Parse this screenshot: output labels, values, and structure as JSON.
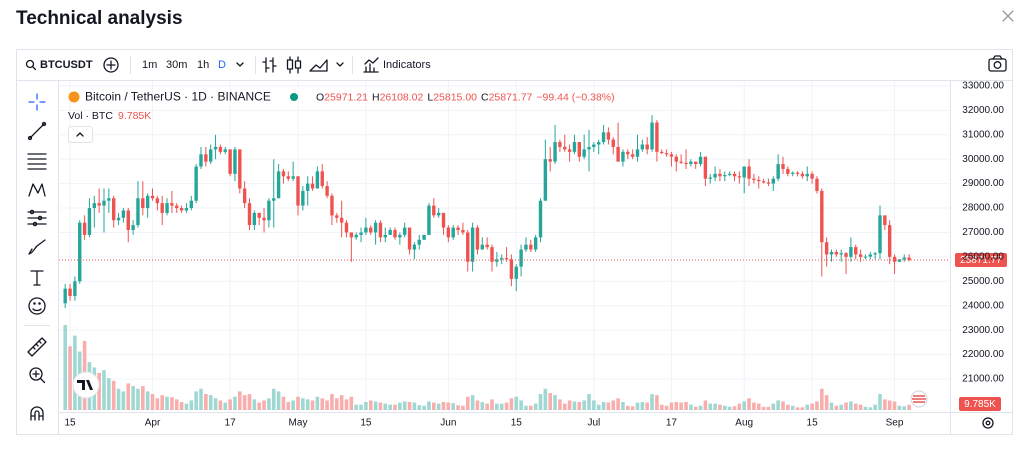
{
  "header": {
    "title": "Technical analysis"
  },
  "toolbar": {
    "symbol": "BTCUSDT",
    "intervals": [
      "1m",
      "30m",
      "1h",
      "D"
    ],
    "indicators": "Indicators"
  },
  "chart_data": {
    "type": "candlestick",
    "legend": {
      "symbol": "Bitcoin / TetherUS · 1D · BINANCE",
      "ohlc": [
        {
          "label": "O",
          "value": "25971.21"
        },
        {
          "label": "H",
          "value": "26108.02"
        },
        {
          "label": "L",
          "value": "25815.00"
        },
        {
          "label": "C",
          "value": "25871.77"
        }
      ],
      "change": "−99.44 (−0.38%)",
      "volume_title": "Vol · BTC",
      "volume_value": "9.785K"
    },
    "last_price_label": "25871.77",
    "categories": [
      null,
      "15",
      null,
      null,
      null,
      null,
      null,
      null,
      null,
      null,
      null,
      null,
      null,
      null,
      null,
      null,
      null,
      null,
      "Apr",
      null,
      null,
      null,
      null,
      null,
      null,
      null,
      null,
      null,
      null,
      null,
      null,
      null,
      null,
      null,
      "17",
      null,
      null,
      null,
      null,
      null,
      null,
      null,
      null,
      null,
      null,
      null,
      null,
      null,
      "May",
      null,
      null,
      null,
      null,
      null,
      null,
      null,
      null,
      null,
      null,
      null,
      null,
      null,
      "15",
      null,
      null,
      null,
      null,
      null,
      null,
      null,
      null,
      null,
      null,
      null,
      null,
      null,
      null,
      null,
      null,
      "Jun",
      null,
      null,
      null,
      null,
      null,
      null,
      null,
      null,
      null,
      null,
      null,
      null,
      null,
      "15",
      null,
      null,
      null,
      null,
      null,
      null,
      null,
      null,
      null,
      null,
      null,
      null,
      null,
      null,
      null,
      "Jul",
      null,
      null,
      null,
      null,
      null,
      null,
      null,
      null,
      null,
      null,
      null,
      null,
      null,
      null,
      null,
      "17",
      null,
      null,
      null,
      null,
      null,
      null,
      null,
      null,
      null,
      null,
      null,
      null,
      null,
      null,
      "Aug",
      null,
      null,
      null,
      null,
      null,
      null,
      null,
      null,
      null,
      null,
      null,
      null,
      null,
      "15",
      null,
      null,
      null,
      null,
      null,
      null,
      null,
      null,
      null,
      null,
      null,
      null,
      null,
      null,
      null,
      null,
      "Sep",
      null,
      null,
      null
    ],
    "series": [
      {
        "name": "BTCUSDT",
        "up_color": "#26a69a",
        "down_color": "#ef5350",
        "open": [
          24100,
          24700,
          24400,
          25000,
          27400,
          26900,
          28000,
          28200,
          28100,
          28300,
          28400,
          27500,
          27600,
          27900,
          27100,
          27300,
          28400,
          28000,
          28500,
          28400,
          28200,
          27800,
          28200,
          28100,
          28000,
          27900,
          28000,
          28300,
          29700,
          30200,
          29900,
          30400,
          30500,
          30300,
          30400,
          29400,
          30400,
          28800,
          28200,
          27300,
          27800,
          27600,
          27500,
          28300,
          28400,
          29500,
          29300,
          29200,
          29300,
          28100,
          28700,
          29000,
          28800,
          29500,
          28900,
          28500,
          27700,
          27600,
          27400,
          27000,
          26800,
          26900,
          27000,
          27200,
          27000,
          27400,
          26800,
          26900,
          27100,
          26800,
          26900,
          27200,
          26300,
          26500,
          26700,
          26900,
          28100,
          27700,
          27800,
          27200,
          26800,
          27200,
          27100,
          27000,
          25800,
          27200,
          26300,
          26500,
          26400,
          25800,
          25900,
          25950,
          25900,
          25100,
          25600,
          26300,
          26500,
          26300,
          26800,
          28300,
          30000,
          29900,
          30700,
          30500,
          30400,
          30300,
          30700,
          30100,
          30400,
          30500,
          30600,
          30700,
          31100,
          30800,
          30500,
          29900,
          30300,
          30200,
          30100,
          30400,
          30600,
          30400,
          31500,
          30300,
          30250,
          30200,
          30100,
          29900,
          29850,
          29800,
          29900,
          29800,
          30100,
          29200,
          29250,
          29400,
          29300,
          29350,
          29400,
          29300,
          29250,
          29700,
          29200,
          29150,
          29100,
          29050,
          29000,
          29200,
          29800,
          29600,
          29400,
          29450,
          29400,
          29300,
          29400,
          29200,
          28700,
          26600,
          26100,
          26200,
          26100,
          26150,
          26000,
          26400,
          26100,
          26000,
          26010,
          26100,
          26150,
          27700,
          27300,
          26000,
          25800,
          25900,
          25971.21
        ],
        "high": [
          24900,
          24900,
          25200,
          27500,
          27700,
          28400,
          28500,
          28800,
          28800,
          28800,
          28500,
          27800,
          28000,
          28000,
          27500,
          29100,
          29100,
          28600,
          28800,
          28500,
          28500,
          28400,
          28700,
          28200,
          28100,
          28200,
          28500,
          29800,
          30500,
          30500,
          30600,
          31000,
          30600,
          30500,
          30400,
          30500,
          30400,
          29100,
          28400,
          27900,
          27800,
          28000,
          28400,
          30000,
          29800,
          29600,
          29500,
          29900,
          29300,
          28900,
          29300,
          29300,
          29700,
          29800,
          29100,
          28600,
          27800,
          28300,
          27500,
          27000,
          27000,
          27200,
          27600,
          27300,
          27500,
          27500,
          27200,
          27200,
          27200,
          27000,
          27400,
          27200,
          26600,
          26900,
          26900,
          28200,
          28400,
          28000,
          27800,
          27300,
          27300,
          27300,
          27400,
          27100,
          27400,
          27300,
          26800,
          26800,
          26500,
          26200,
          26100,
          26400,
          26100,
          25700,
          26500,
          26800,
          26700,
          26900,
          28400,
          30800,
          30500,
          31400,
          30800,
          31000,
          30600,
          31000,
          30700,
          31000,
          31200,
          30700,
          30800,
          31400,
          31300,
          30900,
          31500,
          30400,
          30400,
          30400,
          31000,
          30800,
          30900,
          31800,
          31600,
          30400,
          30400,
          30300,
          30200,
          30200,
          30400,
          30000,
          29900,
          30300,
          30100,
          29400,
          29700,
          29600,
          29500,
          29500,
          29500,
          29500,
          29700,
          30000,
          29400,
          29300,
          29200,
          29200,
          29300,
          30200,
          30100,
          29700,
          29500,
          29500,
          29500,
          29700,
          29500,
          29300,
          28800,
          26800,
          26300,
          26300,
          26300,
          26200,
          26800,
          26500,
          26300,
          26100,
          26200,
          26200,
          28100,
          27700,
          27500,
          26100,
          25900,
          26100,
          26108.02
        ],
        "low": [
          23900,
          24200,
          24200,
          24900,
          26700,
          26800,
          27200,
          27800,
          27000,
          27800,
          27200,
          27300,
          27400,
          26600,
          26900,
          27200,
          27700,
          27600,
          28300,
          27900,
          27300,
          27700,
          27800,
          27800,
          27800,
          27800,
          27900,
          28200,
          29600,
          29700,
          29800,
          30000,
          30200,
          30200,
          29300,
          29100,
          28600,
          28000,
          27100,
          27100,
          27300,
          27000,
          27200,
          27200,
          28400,
          29000,
          29100,
          29100,
          27700,
          27900,
          28100,
          28700,
          28800,
          28800,
          28400,
          27300,
          27400,
          26800,
          26800,
          25800,
          26700,
          26600,
          26900,
          26900,
          26500,
          26600,
          26600,
          26900,
          26700,
          26500,
          26800,
          26100,
          25900,
          26300,
          26700,
          26900,
          27600,
          27600,
          26900,
          26600,
          26700,
          26900,
          26900,
          25400,
          25400,
          26100,
          26300,
          26300,
          25400,
          25600,
          25700,
          25800,
          24800,
          24600,
          25200,
          26200,
          26200,
          26200,
          26600,
          28300,
          29500,
          29800,
          30300,
          30300,
          29900,
          30200,
          29900,
          30000,
          29500,
          30300,
          30200,
          30600,
          30600,
          30200,
          29900,
          29700,
          30000,
          30000,
          29900,
          30300,
          30200,
          30300,
          29900,
          30200,
          30100,
          29700,
          29500,
          29800,
          29600,
          29700,
          29600,
          29700,
          28900,
          29000,
          29100,
          29100,
          29100,
          29300,
          29100,
          29000,
          28600,
          28900,
          29000,
          28800,
          29000,
          28900,
          28700,
          29100,
          29400,
          29300,
          29300,
          29300,
          29200,
          29100,
          29000,
          28600,
          25200,
          25600,
          25800,
          26000,
          25800,
          25300,
          25800,
          25900,
          25800,
          25900,
          25900,
          25900,
          25900,
          27100,
          25700,
          25300,
          25800,
          25800,
          25815
        ],
        "close": [
          24700,
          24400,
          25000,
          27400,
          26900,
          28000,
          28200,
          28100,
          28300,
          28400,
          27500,
          27600,
          27900,
          27100,
          27300,
          28400,
          28000,
          28500,
          28400,
          28200,
          27800,
          28200,
          28100,
          28000,
          27900,
          28000,
          28300,
          29700,
          30200,
          29900,
          30400,
          30500,
          30300,
          30400,
          29400,
          30400,
          28800,
          28200,
          27300,
          27800,
          27600,
          27500,
          28300,
          28400,
          29500,
          29300,
          29200,
          29300,
          28100,
          28700,
          29000,
          28800,
          29500,
          28900,
          28500,
          27700,
          27600,
          27400,
          27000,
          26800,
          26900,
          27000,
          27200,
          27000,
          27400,
          26800,
          26900,
          27100,
          26800,
          26900,
          27200,
          26300,
          26500,
          26700,
          26900,
          28100,
          27700,
          27800,
          27200,
          26800,
          27200,
          27100,
          27000,
          25800,
          27200,
          26300,
          26500,
          26400,
          25800,
          25900,
          25950,
          25900,
          25100,
          25600,
          26300,
          26500,
          26300,
          26800,
          28300,
          30000,
          29900,
          30700,
          30500,
          30400,
          30300,
          30700,
          30100,
          30400,
          30500,
          30600,
          30700,
          31100,
          30800,
          30500,
          29900,
          30300,
          30200,
          30100,
          30400,
          30600,
          30400,
          31500,
          30300,
          30250,
          30200,
          30100,
          29900,
          29850,
          29800,
          29900,
          29800,
          30100,
          29200,
          29250,
          29400,
          29300,
          29350,
          29400,
          29300,
          29250,
          29700,
          29200,
          29150,
          29100,
          29050,
          29000,
          29200,
          29800,
          29600,
          29400,
          29450,
          29400,
          29300,
          29400,
          29200,
          28700,
          26600,
          26100,
          26200,
          26100,
          26150,
          26000,
          26400,
          26100,
          26000,
          26010,
          26100,
          26150,
          27700,
          27300,
          26000,
          25800,
          25900,
          25971.21,
          25871.77
        ]
      }
    ],
    "volume": {
      "up_color": "#9fd8d2",
      "down_color": "#f7aeac",
      "values": [
        160000,
        120000,
        140000,
        110000,
        130000,
        90000,
        80000,
        70000,
        75000,
        60000,
        55000,
        40000,
        35000,
        50000,
        45000,
        40000,
        45000,
        35000,
        30000,
        22000,
        28000,
        25000,
        24000,
        20000,
        15000,
        12000,
        18000,
        35000,
        40000,
        30000,
        28000,
        22000,
        18000,
        14000,
        20000,
        25000,
        35000,
        28000,
        30000,
        20000,
        14000,
        18000,
        22000,
        40000,
        35000,
        25000,
        15000,
        18000,
        25000,
        22000,
        20000,
        18000,
        25000,
        22000,
        18000,
        30000,
        22000,
        28000,
        20000,
        25000,
        10000,
        10000,
        15000,
        18000,
        16000,
        14000,
        12000,
        10000,
        10000,
        14000,
        16000,
        15000,
        14000,
        9000,
        8000,
        16000,
        14000,
        12000,
        15000,
        14000,
        13000,
        9000,
        8000,
        25000,
        28000,
        18000,
        15000,
        12000,
        20000,
        12000,
        12000,
        14000,
        22000,
        25000,
        18000,
        8000,
        8000,
        12000,
        30000,
        40000,
        32000,
        28000,
        20000,
        12000,
        18000,
        16000,
        15000,
        18000,
        30000,
        18000,
        10000,
        15000,
        14000,
        18000,
        22000,
        15000,
        8000,
        7000,
        14000,
        15000,
        14000,
        30000,
        28000,
        10000,
        8000,
        14000,
        15000,
        14000,
        15000,
        10000,
        6000,
        8000,
        18000,
        12000,
        12000,
        10000,
        8000,
        6000,
        7000,
        12000,
        16000,
        22000,
        14000,
        12000,
        6000,
        6000,
        12000,
        18000,
        16000,
        10000,
        8000,
        5000,
        5000,
        10000,
        12000,
        16000,
        40000,
        28000,
        14000,
        8000,
        10000,
        14000,
        16000,
        12000,
        10000,
        6000,
        5000,
        10000,
        30000,
        20000,
        18000,
        16000,
        8000,
        7000,
        9785
      ]
    },
    "ylim": [
      19650,
      33200
    ],
    "yticks": [
      {
        "value": 21000,
        "label": "21000.00"
      },
      {
        "value": 22000,
        "label": "22000.00"
      },
      {
        "value": 23000,
        "label": "23000.00"
      },
      {
        "value": 24000,
        "label": "24000.00"
      },
      {
        "value": 25000,
        "label": "25000.00"
      },
      {
        "value": 26000,
        "label": "26000.00"
      },
      {
        "value": 27000,
        "label": "27000.00"
      },
      {
        "value": 28000,
        "label": "28000.00"
      },
      {
        "value": 29000,
        "label": "29000.00"
      },
      {
        "value": 30000,
        "label": "30000.00"
      },
      {
        "value": 31000,
        "label": "31000.00"
      },
      {
        "value": 32000,
        "label": "32000.00"
      },
      {
        "value": 33000,
        "label": "33000.00"
      }
    ],
    "grid": true
  }
}
